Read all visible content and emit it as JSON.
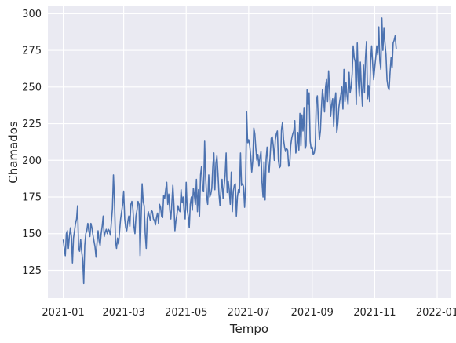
{
  "chart_data": {
    "type": "line",
    "title": "",
    "xlabel": "Tempo",
    "ylabel": "Chamados",
    "grid": true,
    "legend": "none",
    "style": {
      "background": "#eaeaf2",
      "grid_color": "#ffffff",
      "line_color": "#4c72b0"
    },
    "xlim": [
      "2020-12-17",
      "2022-01-14"
    ],
    "ylim": [
      106,
      305
    ],
    "x_ticks": [
      {
        "value": "2021-01-01",
        "label": "2021-01"
      },
      {
        "value": "2021-03-01",
        "label": "2021-03"
      },
      {
        "value": "2021-05-01",
        "label": "2021-05"
      },
      {
        "value": "2021-07-01",
        "label": "2021-07"
      },
      {
        "value": "2021-09-01",
        "label": "2021-09"
      },
      {
        "value": "2021-11-01",
        "label": "2021-11"
      },
      {
        "value": "2022-01-01",
        "label": "2022-01"
      }
    ],
    "y_ticks": [
      125,
      150,
      175,
      200,
      225,
      250,
      275,
      300
    ],
    "series": [
      {
        "x_start": "2021-01-01",
        "x_step_days": 1,
        "values": [
          146,
          140,
          135,
          150,
          152,
          140,
          148,
          154,
          148,
          130,
          147,
          152,
          157,
          160,
          169,
          140,
          138,
          146,
          138,
          132,
          116,
          142,
          150,
          152,
          157,
          152,
          148,
          157,
          154,
          149,
          145,
          141,
          134,
          144,
          152,
          145,
          142,
          150,
          155,
          162,
          148,
          151,
          153,
          150,
          153,
          152,
          149,
          158,
          167,
          190,
          173,
          145,
          140,
          147,
          143,
          152,
          160,
          165,
          170,
          179,
          160,
          154,
          152,
          158,
          162,
          155,
          170,
          172,
          167,
          155,
          150,
          162,
          166,
          172,
          170,
          135,
          160,
          184,
          172,
          169,
          150,
          140,
          160,
          165,
          162,
          159,
          166,
          165,
          160,
          159,
          156,
          161,
          164,
          157,
          170,
          168,
          162,
          161,
          176,
          174,
          180,
          185,
          170,
          177,
          166,
          160,
          171,
          183,
          170,
          152,
          159,
          163,
          169,
          166,
          165,
          180,
          171,
          175,
          165,
          160,
          185,
          166,
          162,
          154,
          170,
          175,
          166,
          181,
          176,
          170,
          187,
          165,
          180,
          162,
          190,
          196,
          180,
          179,
          213,
          188,
          175,
          170,
          190,
          175,
          177,
          181,
          196,
          205,
          180,
          198,
          203,
          191,
          177,
          169,
          180,
          187,
          174,
          182,
          190,
          205,
          178,
          186,
          180,
          170,
          192,
          165,
          179,
          183,
          184,
          162,
          175,
          180,
          178,
          205,
          183,
          184,
          182,
          168,
          182,
          233,
          212,
          214,
          210,
          203,
          192,
          200,
          222,
          218,
          208,
          200,
          204,
          196,
          202,
          206,
          185,
          175,
          199,
          173,
          201,
          209,
          197,
          192,
          204,
          215,
          216,
          210,
          200,
          214,
          218,
          220,
          200,
          195,
          196,
          221,
          226,
          214,
          209,
          206,
          208,
          207,
          196,
          197,
          210,
          215,
          218,
          220,
          227,
          205,
          209,
          219,
          207,
          232,
          210,
          231,
          220,
          236,
          208,
          210,
          248,
          238,
          246,
          213,
          208,
          209,
          204,
          205,
          210,
          240,
          244,
          227,
          214,
          220,
          236,
          248,
          242,
          233,
          250,
          255,
          240,
          261,
          247,
          230,
          238,
          242,
          223,
          240,
          246,
          219,
          225,
          236,
          241,
          245,
          250,
          235,
          262,
          240,
          253,
          244,
          238,
          260,
          246,
          250,
          259,
          278,
          270,
          267,
          238,
          280,
          255,
          244,
          267,
          250,
          237,
          265,
          246,
          270,
          281,
          242,
          251,
          240,
          268,
          278,
          266,
          255,
          263,
          270,
          278,
          272,
          291,
          268,
          262,
          297,
          275,
          290,
          280,
          272,
          255,
          250,
          248,
          260,
          270,
          263,
          280,
          282,
          285,
          276
        ]
      }
    ]
  }
}
